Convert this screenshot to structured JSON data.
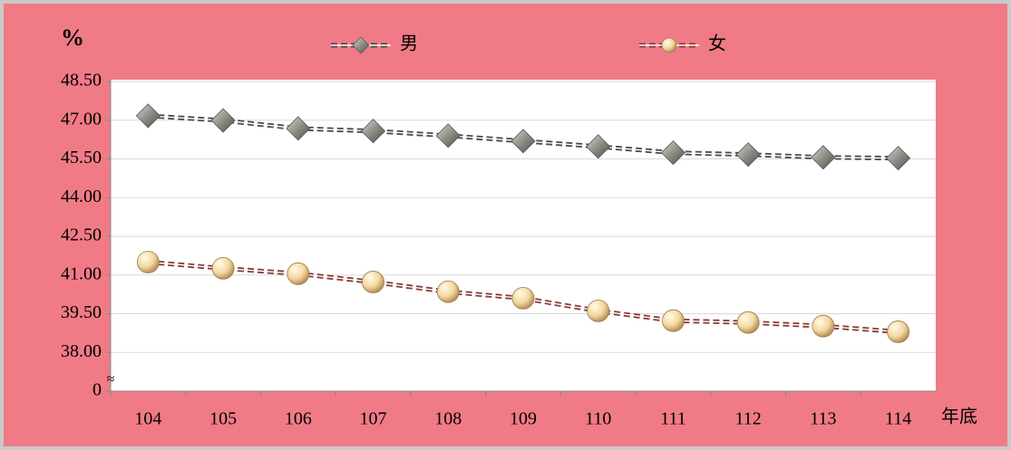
{
  "chart_data": {
    "type": "line",
    "y_label": "%",
    "x_label": "年底",
    "categories": [
      "104",
      "105",
      "106",
      "107",
      "108",
      "109",
      "110",
      "111",
      "112",
      "113",
      "114"
    ],
    "series": [
      {
        "name": "男",
        "color": "#8e8e86",
        "line_color": "#4a4a4a",
        "marker": "diamond",
        "values": [
          47.17,
          46.99,
          46.68,
          46.58,
          46.4,
          46.19,
          45.98,
          45.74,
          45.67,
          45.56,
          45.53
        ]
      },
      {
        "name": "女",
        "color": "#f3d8a0",
        "line_color": "#8b3a3a",
        "marker": "circle",
        "values": [
          41.5,
          41.26,
          41.05,
          40.73,
          40.35,
          40.1,
          39.61,
          39.23,
          39.16,
          39.02,
          38.8
        ]
      }
    ],
    "ylim": [
      0,
      48.5
    ],
    "axis_break": true,
    "axis_break_symbol": "≈",
    "yticks": [
      0,
      {
        "value": 38,
        "label": "38.00"
      },
      {
        "value": 39.5,
        "label": "39.50"
      },
      {
        "value": 41,
        "label": "41.00"
      },
      {
        "value": 42.5,
        "label": "42.50"
      },
      {
        "value": 44,
        "label": "44.00"
      },
      {
        "value": 45.5,
        "label": "45.50"
      },
      {
        "value": 47,
        "label": "47.00"
      },
      {
        "value": 48.5,
        "label": "48.50"
      }
    ],
    "grid": true,
    "legend": "top"
  }
}
